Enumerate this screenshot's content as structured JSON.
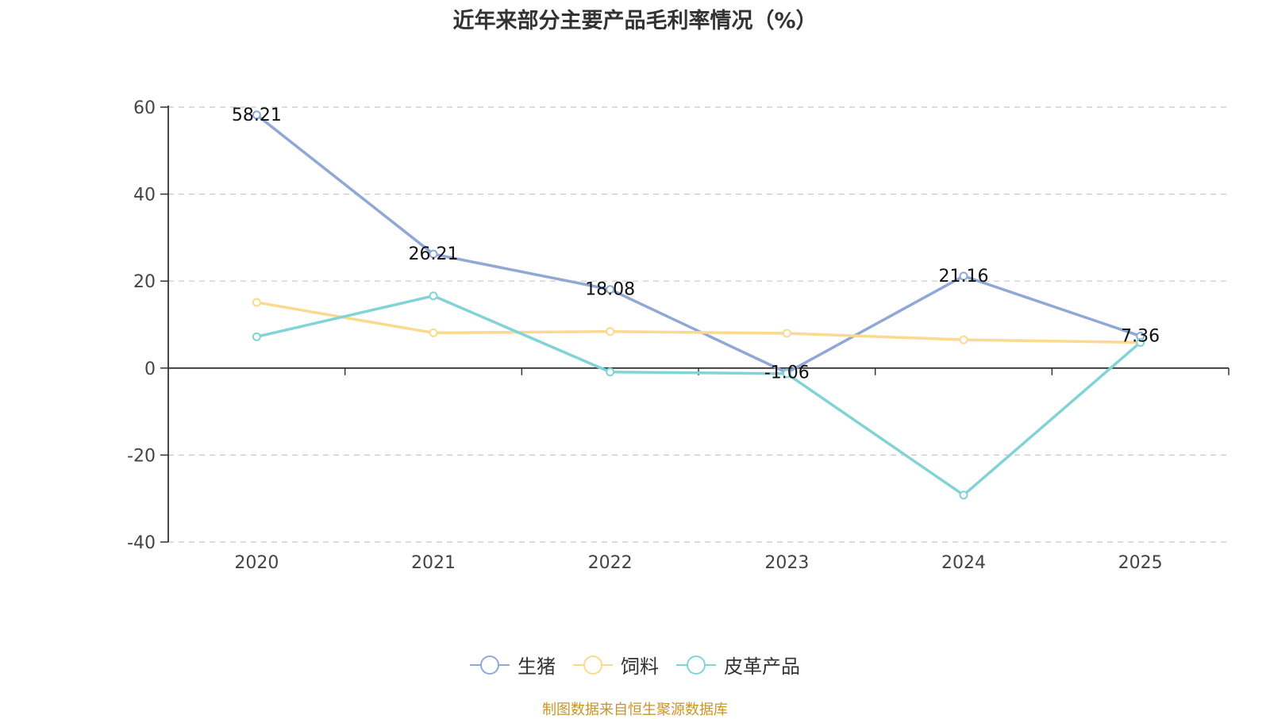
{
  "chart_data": {
    "type": "line",
    "title": "近年来部分主要产品毛利率情况（%）",
    "categories": [
      "2020",
      "2021",
      "2022",
      "2023",
      "2024",
      "2025"
    ],
    "ylim": [
      -40,
      60
    ],
    "yticks": [
      60,
      40,
      20,
      0,
      -20,
      -40
    ],
    "grid": true,
    "legend_position": "bottom",
    "series": [
      {
        "name": "生猪",
        "color": "#8fa8d6",
        "values": [
          58.21,
          26.21,
          18.08,
          -1.06,
          21.16,
          7.36
        ],
        "labels": [
          "58.21",
          "26.21",
          "18.08",
          "-1.06",
          "21.16",
          "7.36"
        ]
      },
      {
        "name": "饲料",
        "color": "#fbd98e",
        "values": [
          15.1,
          8.1,
          8.4,
          8.0,
          6.5,
          5.9
        ]
      },
      {
        "name": "皮革产品",
        "color": "#82d3d6",
        "values": [
          7.2,
          16.6,
          -0.9,
          -1.3,
          -29.2,
          5.9
        ]
      }
    ],
    "source": "制图数据来自恒生聚源数据库"
  }
}
